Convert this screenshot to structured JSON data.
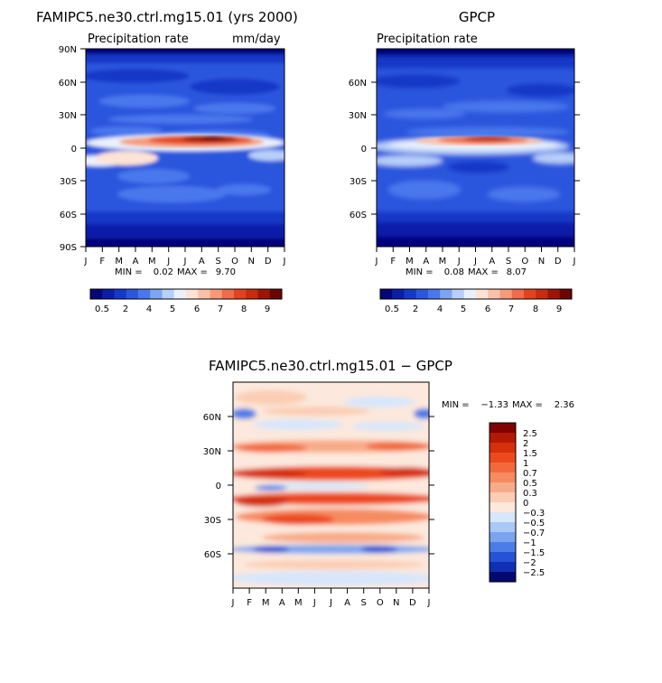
{
  "months": [
    "J",
    "F",
    "M",
    "A",
    "M",
    "J",
    "J",
    "A",
    "S",
    "O",
    "N",
    "D",
    "J"
  ],
  "chart_data": [
    {
      "type": "heatmap",
      "title": "FAMIPC5.ne30.ctrl.mg15.01 (yrs 2000)",
      "subtitle": "Precipitation rate",
      "units": "mm/day",
      "ylabels": [
        "90N",
        "60N",
        "30N",
        "0",
        "30S",
        "60S",
        "90S"
      ],
      "ylim": [
        -90,
        90
      ],
      "min_label": "MIN =",
      "min_value": "0.02",
      "max_label": "MAX =",
      "max_value": "9.70",
      "colorbar": {
        "labels": [
          "0.5",
          "2",
          "4",
          "5",
          "6",
          "7",
          "8",
          "9"
        ],
        "colors": [
          "#04067a",
          "#0a1ea8",
          "#1439c8",
          "#2a57de",
          "#4a78ec",
          "#7ea5f4",
          "#b7cff9",
          "#eaf1fd",
          "#fde3d5",
          "#fbc1a8",
          "#f79a79",
          "#f06c4a",
          "#e4421f",
          "#c82b0e",
          "#9d1506",
          "#6b0502"
        ]
      }
    },
    {
      "type": "heatmap",
      "title": "GPCP",
      "subtitle": "Precipitation rate",
      "ylabels": [
        "60N",
        "30N",
        "0",
        "30S",
        "60S"
      ],
      "ylim": [
        -90,
        90
      ],
      "min_label": "MIN =",
      "min_value": "0.08",
      "max_label": "MAX =",
      "max_value": "8.07",
      "colorbar": {
        "labels": [
          "0.5",
          "2",
          "4",
          "5",
          "6",
          "7",
          "8",
          "9"
        ],
        "colors": [
          "#04067a",
          "#0a1ea8",
          "#1439c8",
          "#2a57de",
          "#4a78ec",
          "#7ea5f4",
          "#b7cff9",
          "#eaf1fd",
          "#fde3d5",
          "#fbc1a8",
          "#f79a79",
          "#f06c4a",
          "#e4421f",
          "#c82b0e",
          "#9d1506",
          "#6b0502"
        ]
      }
    },
    {
      "type": "heatmap",
      "title": "FAMIPC5.ne30.ctrl.mg15.01 − GPCP",
      "ylabels": [
        "60N",
        "30N",
        "0",
        "30S",
        "60S"
      ],
      "ylim": [
        -90,
        90
      ],
      "min_label": "MIN =",
      "min_value": "−1.33",
      "max_label": "MAX =",
      "max_value": "2.36",
      "colorbar": {
        "labels": [
          "2.5",
          "2",
          "1.5",
          "1",
          "0.7",
          "0.5",
          "0.3",
          "0",
          "−0.3",
          "−0.5",
          "−0.7",
          "−1",
          "−1.5",
          "−2",
          "−2.5"
        ],
        "colors": [
          "#800000",
          "#b31a05",
          "#d4300c",
          "#ec4a1e",
          "#f26a3c",
          "#f68b60",
          "#f8ab88",
          "#fbcdb4",
          "#fce8dc",
          "#d7e6fb",
          "#a9c8f6",
          "#7aa4ef",
          "#4c7de6",
          "#2652d5",
          "#1030b3",
          "#03096f"
        ]
      }
    }
  ]
}
